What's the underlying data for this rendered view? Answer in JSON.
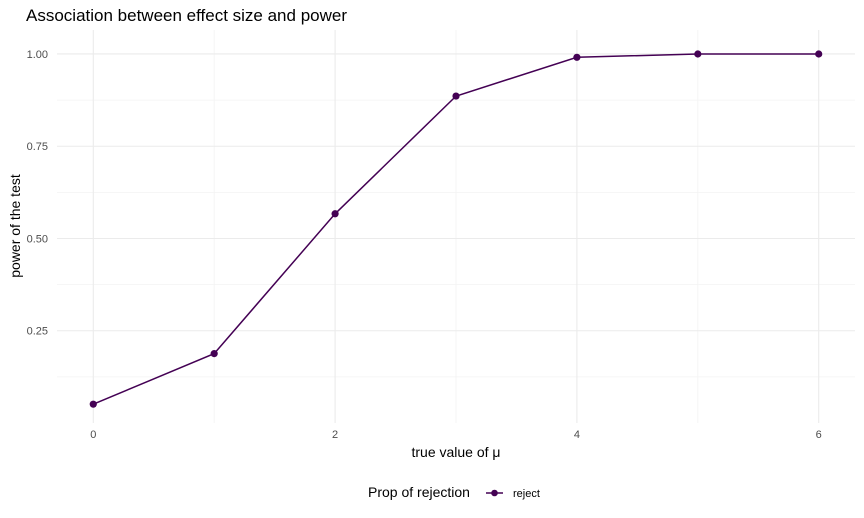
{
  "chart_data": {
    "type": "line",
    "title": "Association between effect size and power",
    "xlabel": "true value of μ",
    "ylabel": "power of the test",
    "x": [
      0,
      1,
      2,
      3,
      4,
      5,
      6
    ],
    "series": [
      {
        "name": "reject",
        "values": [
          0.051,
          0.188,
          0.567,
          0.886,
          0.991,
          1.0,
          1.0
        ]
      }
    ],
    "xlim": [
      -0.3,
      6.3
    ],
    "ylim": [
      0.0,
      1.065
    ],
    "x_ticks": [
      0,
      2,
      4,
      6
    ],
    "x_tick_labels": [
      "0",
      "2",
      "4",
      "6"
    ],
    "x_minor_ticks": [
      1,
      3,
      5
    ],
    "y_ticks": [
      0.25,
      0.5,
      0.75,
      1.0
    ],
    "y_tick_labels": [
      "0.25",
      "0.50",
      "0.75",
      "1.00"
    ],
    "y_minor_ticks": [
      0.125,
      0.375,
      0.625,
      0.875
    ],
    "grid": true,
    "legend": {
      "title": "Prop of rejection",
      "position": "bottom",
      "entries": [
        "reject"
      ]
    },
    "colors": {
      "series": "#440154",
      "background": "#ffffff",
      "grid_major": "#ebebeb",
      "grid_minor": "#f3f3f3"
    }
  }
}
